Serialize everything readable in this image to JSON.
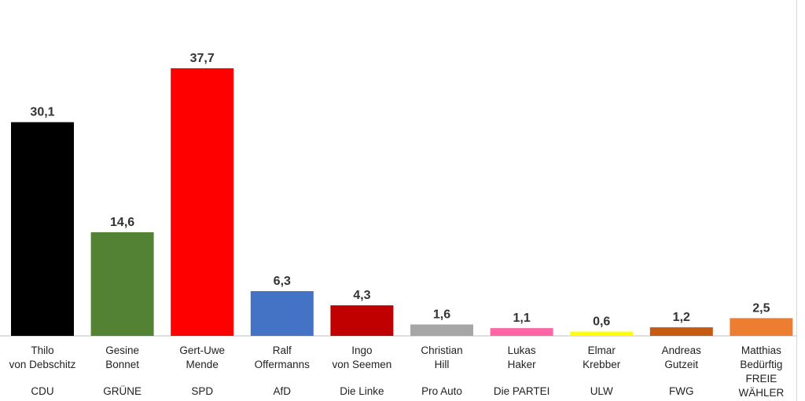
{
  "chart_data": {
    "type": "bar",
    "categories": [
      {
        "candidate": [
          "Thilo",
          "von Debschitz"
        ],
        "party": "CDU"
      },
      {
        "candidate": [
          "Gesine",
          "Bonnet"
        ],
        "party": "GRÜNE"
      },
      {
        "candidate": [
          "Gert-Uwe",
          "Mende"
        ],
        "party": "SPD"
      },
      {
        "candidate": [
          "Ralf",
          "Offermanns"
        ],
        "party": "AfD"
      },
      {
        "candidate": [
          "Ingo",
          "von Seemen"
        ],
        "party": "Die Linke"
      },
      {
        "candidate": [
          "Christian",
          "Hill"
        ],
        "party": "Pro Auto"
      },
      {
        "candidate": [
          "Lukas",
          "Haker"
        ],
        "party": "Die PARTEI"
      },
      {
        "candidate": [
          "Elmar",
          "Krebber"
        ],
        "party": "ULW"
      },
      {
        "candidate": [
          "Andreas",
          "Gutzeit"
        ],
        "party": "FWG"
      },
      {
        "candidate": [
          "Matthias",
          "Bedürftig",
          "FREIE",
          "WÄHLER"
        ],
        "party": ""
      }
    ],
    "values": [
      30.1,
      14.6,
      37.7,
      6.3,
      4.3,
      1.6,
      1.1,
      0.6,
      1.2,
      2.5
    ],
    "value_labels": [
      "30,1",
      "14,6",
      "37,7",
      "6,3",
      "4,3",
      "1,6",
      "1,1",
      "0,6",
      "1,2",
      "2,5"
    ],
    "colors": [
      "#000000",
      "#548235",
      "#ff0000",
      "#4472c4",
      "#c00000",
      "#a6a6a6",
      "#ff66a6",
      "#ffff00",
      "#c55a11",
      "#ed7d31"
    ],
    "ylim": [
      0,
      37.7
    ],
    "grid": false,
    "legend": "none"
  }
}
